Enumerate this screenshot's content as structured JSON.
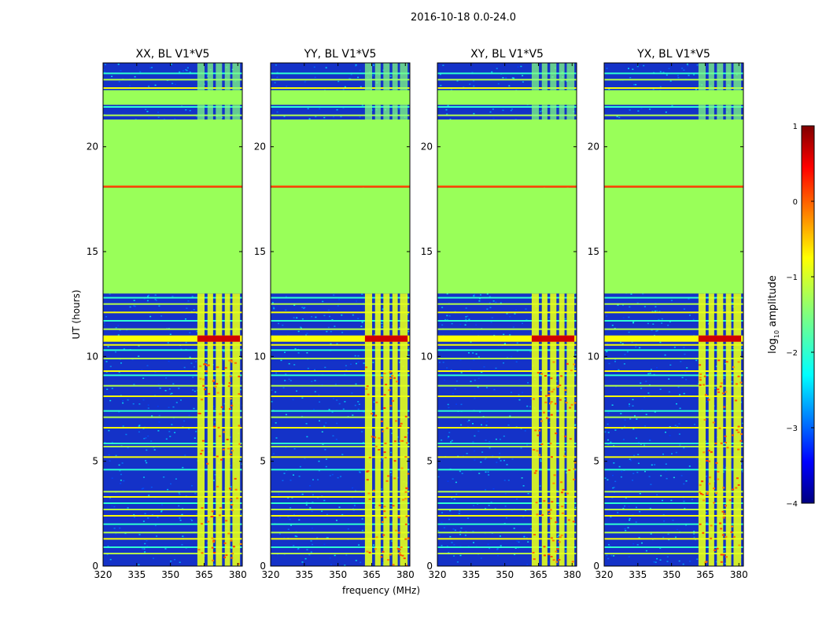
{
  "figure": {
    "suptitle": "2016-10-18 0.0-24.0"
  },
  "chart_data": [
    {
      "type": "heatmap",
      "title": "XX, BL V1*V5",
      "xlabel": "",
      "ylabel": "UT (hours)",
      "xlim": [
        320,
        382
      ],
      "ylim": [
        0,
        24
      ],
      "xticks": [
        320,
        335,
        350,
        365,
        380
      ],
      "yticks": [
        0,
        5,
        10,
        15,
        20
      ],
      "xtick_labels": [
        "320",
        "335",
        "350",
        "365",
        "380"
      ],
      "ytick_labels": [
        "0",
        "5",
        "10",
        "15",
        "20"
      ],
      "flagged_time_ranges": [
        [
          13.0,
          18.05
        ],
        [
          18.15,
          21.3
        ],
        [
          22.0,
          22.7
        ]
      ],
      "rfi_freq_ranges": [
        [
          362.0,
          381.0
        ]
      ],
      "rfi_strong_time_ranges": [
        [
          10.7,
          11.0
        ]
      ]
    },
    {
      "type": "heatmap",
      "title": "YY, BL V1*V5",
      "xlabel": "frequency (MHz)",
      "ylabel": "",
      "xlim": [
        320,
        382
      ],
      "ylim": [
        0,
        24
      ],
      "xticks": [
        320,
        335,
        350,
        365,
        380
      ],
      "yticks": [
        0,
        5,
        10,
        15,
        20
      ],
      "xtick_labels": [
        "320",
        "335",
        "350",
        "365",
        "380"
      ],
      "ytick_labels": [
        "0",
        "5",
        "10",
        "15",
        "20"
      ],
      "flagged_time_ranges": [
        [
          13.0,
          18.05
        ],
        [
          18.15,
          21.3
        ],
        [
          22.0,
          22.7
        ]
      ],
      "rfi_freq_ranges": [
        [
          362.0,
          381.0
        ]
      ],
      "rfi_strong_time_ranges": [
        [
          10.7,
          11.0
        ]
      ]
    },
    {
      "type": "heatmap",
      "title": "XY, BL V1*V5",
      "xlabel": "",
      "ylabel": "",
      "xlim": [
        320,
        382
      ],
      "ylim": [
        0,
        24
      ],
      "xticks": [
        320,
        335,
        350,
        365,
        380
      ],
      "yticks": [
        0,
        5,
        10,
        15,
        20
      ],
      "xtick_labels": [
        "320",
        "335",
        "350",
        "365",
        "380"
      ],
      "ytick_labels": [
        "0",
        "5",
        "10",
        "15",
        "20"
      ],
      "flagged_time_ranges": [
        [
          13.0,
          18.05
        ],
        [
          18.15,
          21.3
        ],
        [
          22.0,
          22.7
        ]
      ],
      "rfi_freq_ranges": [
        [
          362.0,
          381.0
        ]
      ],
      "rfi_strong_time_ranges": [
        [
          10.7,
          11.0
        ]
      ]
    },
    {
      "type": "heatmap",
      "title": "YX, BL V1*V5",
      "xlabel": "",
      "ylabel": "",
      "xlim": [
        320,
        382
      ],
      "ylim": [
        0,
        24
      ],
      "xticks": [
        320,
        335,
        350,
        365,
        380
      ],
      "yticks": [
        0,
        5,
        10,
        15,
        20
      ],
      "xtick_labels": [
        "320",
        "335",
        "350",
        "365",
        "380"
      ],
      "ytick_labels": [
        "0",
        "5",
        "10",
        "15",
        "20"
      ],
      "flagged_time_ranges": [
        [
          13.0,
          18.05
        ],
        [
          18.15,
          21.3
        ],
        [
          22.0,
          22.7
        ]
      ],
      "rfi_freq_ranges": [
        [
          362.0,
          381.0
        ]
      ],
      "rfi_strong_time_ranges": [
        [
          10.7,
          11.0
        ]
      ]
    }
  ],
  "colorbar": {
    "label": "log",
    "label_sub": "10",
    "label_suffix": " amplitude",
    "range": [
      -4,
      1
    ],
    "ticks": [
      1,
      0,
      -1,
      -2,
      -3,
      -4
    ],
    "tick_labels": [
      "1",
      "0",
      "−1",
      "−2",
      "−3",
      "−4"
    ],
    "colormap": "jet"
  },
  "colors": {
    "flagged": "#99ff59",
    "background": "#1432c8"
  }
}
